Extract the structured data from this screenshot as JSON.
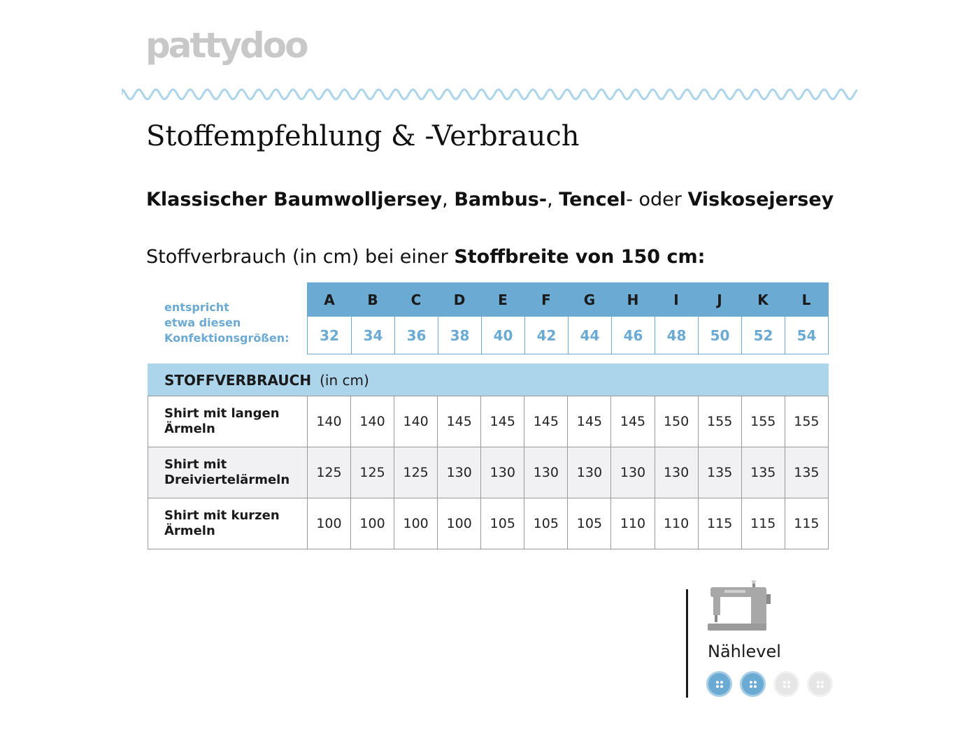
{
  "brand": {
    "logo_text": "pattydoo"
  },
  "title": "Stoffempfehlung & -Verbrauch",
  "fabrics": {
    "part1": "Klassischer Baumwolljersey",
    "sep1": ", ",
    "part2": "Bambus-",
    "sep2": ", ",
    "part3": "Tencel",
    "sep3": "- oder ",
    "part4": "Viskosejersey"
  },
  "usage_intro": {
    "normal": "Stoffverbrauch (in cm) bei einer ",
    "bold": "Stoffbreite von 150 cm:"
  },
  "size_header": {
    "label": "entspricht\netwa diesen\nKonfektionsgrößen:",
    "letters": [
      "A",
      "B",
      "C",
      "D",
      "E",
      "F",
      "G",
      "H",
      "I",
      "J",
      "K",
      "L"
    ],
    "sizes": [
      "32",
      "34",
      "36",
      "38",
      "40",
      "42",
      "44",
      "46",
      "48",
      "50",
      "52",
      "54"
    ]
  },
  "usage_table": {
    "heading": "STOFFVERBRAUCH",
    "heading_unit": "(in cm)",
    "rows": [
      {
        "label": "Shirt mit langen\nÄrmeln",
        "values": [
          "140",
          "140",
          "140",
          "145",
          "145",
          "145",
          "145",
          "145",
          "150",
          "155",
          "155",
          "155"
        ]
      },
      {
        "label": "Shirt mit\nDreiviertelärmeln",
        "values": [
          "125",
          "125",
          "125",
          "130",
          "130",
          "130",
          "130",
          "130",
          "130",
          "135",
          "135",
          "135"
        ]
      },
      {
        "label": "Shirt mit kurzen\nÄrmeln",
        "values": [
          "100",
          "100",
          "100",
          "100",
          "105",
          "105",
          "105",
          "110",
          "110",
          "115",
          "115",
          "115"
        ]
      }
    ]
  },
  "sewing_level": {
    "label": "Nählevel",
    "level": 2,
    "max": 4,
    "icon": "sewing-machine-icon",
    "active_color": "#6aaad3",
    "inactive_color": "#e6e6e6"
  }
}
